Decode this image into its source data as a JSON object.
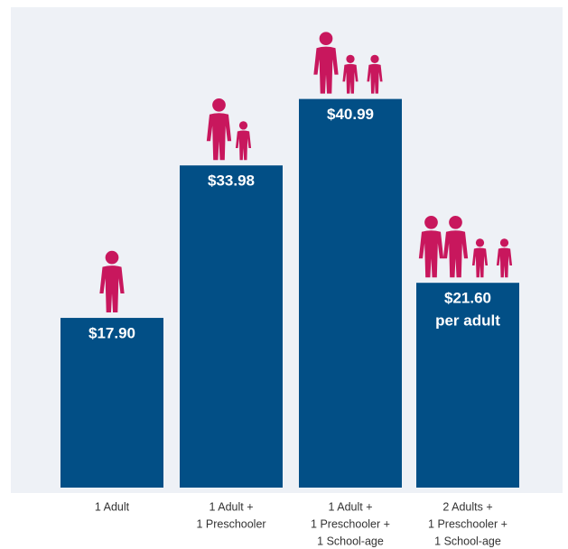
{
  "chart_data": {
    "type": "bar",
    "categories": [
      [
        "1 Adult"
      ],
      [
        "1 Adult +",
        "1 Preschooler"
      ],
      [
        "1 Adult +",
        "1 Preschooler +",
        "1 School-age"
      ],
      [
        "2 Adults +",
        "1 Preschooler +",
        "1 School-age"
      ]
    ],
    "values": [
      17.9,
      33.98,
      40.99,
      21.6
    ],
    "value_labels": [
      "$17.90",
      "$33.98",
      "$40.99",
      "$21.60"
    ],
    "annotation": "per adult",
    "color": "#024f86",
    "icon_color": "#c8175d"
  }
}
